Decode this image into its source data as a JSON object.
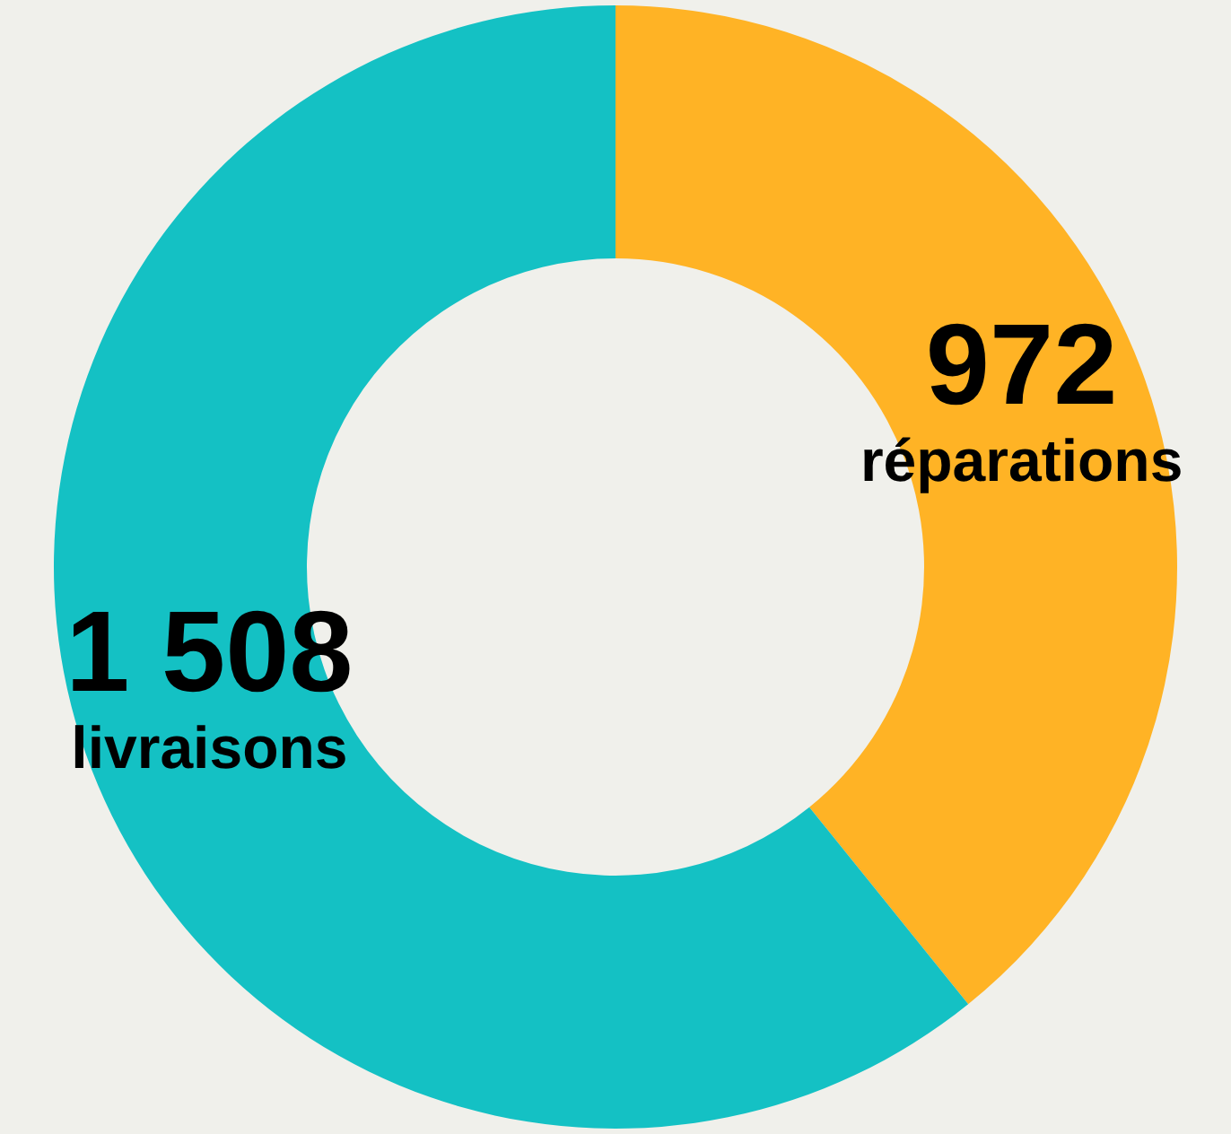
{
  "chart_data": {
    "type": "donut",
    "categories": [
      "réparations",
      "livraisons"
    ],
    "values": [
      972,
      1508
    ],
    "colors": [
      "#ffb325",
      "#14c1c4"
    ],
    "value_labels": [
      "972",
      "1 508"
    ]
  }
}
